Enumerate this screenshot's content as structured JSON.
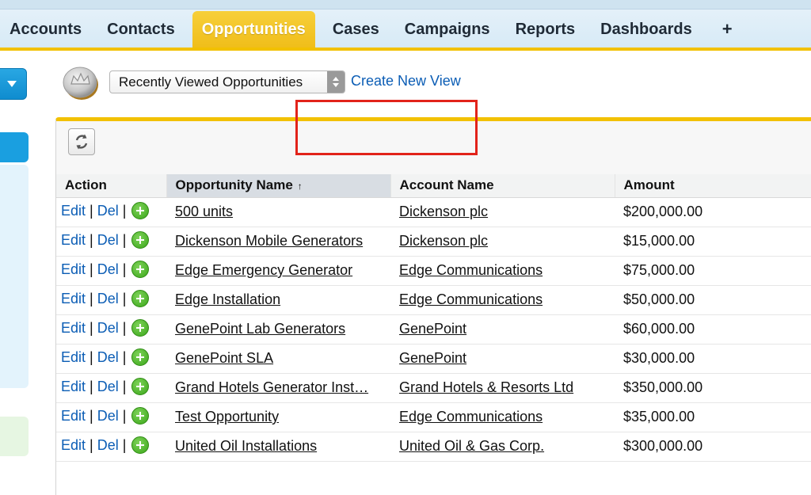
{
  "nav": {
    "tabs": [
      {
        "label": "Accounts",
        "active": false
      },
      {
        "label": "Contacts",
        "active": false
      },
      {
        "label": "Opportunities",
        "active": true
      },
      {
        "label": "Cases",
        "active": false
      },
      {
        "label": "Campaigns",
        "active": false
      },
      {
        "label": "Reports",
        "active": false
      },
      {
        "label": "Dashboards",
        "active": false
      },
      {
        "label": "+",
        "active": false
      }
    ]
  },
  "view": {
    "selected": "Recently Viewed Opportunities",
    "create_link": "Create New View"
  },
  "table": {
    "headers": [
      "Action",
      "Opportunity Name",
      "Account Name",
      "Amount"
    ],
    "sort_indicator": "↑",
    "action_edit": "Edit",
    "action_del": "Del",
    "action_sep": "|",
    "rows": [
      {
        "name": "500 units",
        "account": "Dickenson plc",
        "amount": "$200,000.00"
      },
      {
        "name": "Dickenson Mobile Generators",
        "account": "Dickenson plc",
        "amount": "$15,000.00"
      },
      {
        "name": "Edge Emergency Generator",
        "account": "Edge Communications",
        "amount": "$75,000.00"
      },
      {
        "name": "Edge Installation",
        "account": "Edge Communications",
        "amount": "$50,000.00"
      },
      {
        "name": "GenePoint Lab Generators",
        "account": "GenePoint",
        "amount": "$60,000.00"
      },
      {
        "name": "GenePoint SLA",
        "account": "GenePoint",
        "amount": "$30,000.00"
      },
      {
        "name": "Grand Hotels Generator Inst…",
        "account": "Grand Hotels & Resorts Ltd",
        "amount": "$350,000.00"
      },
      {
        "name": "Test Opportunity",
        "account": "Edge Communications",
        "amount": "$35,000.00"
      },
      {
        "name": "United Oil Installations",
        "account": "United Oil & Gas Corp.",
        "amount": "$300,000.00"
      }
    ]
  },
  "colors": {
    "accent": "#f2c100",
    "link": "#0b5db5",
    "highlight": "#e2231a",
    "add_icon": "#3aa619"
  },
  "icons": {
    "app": "coin-icon",
    "refresh": "refresh-icon",
    "add": "plus-circle-icon",
    "sidebar_menu": "chevron-down-icon"
  }
}
